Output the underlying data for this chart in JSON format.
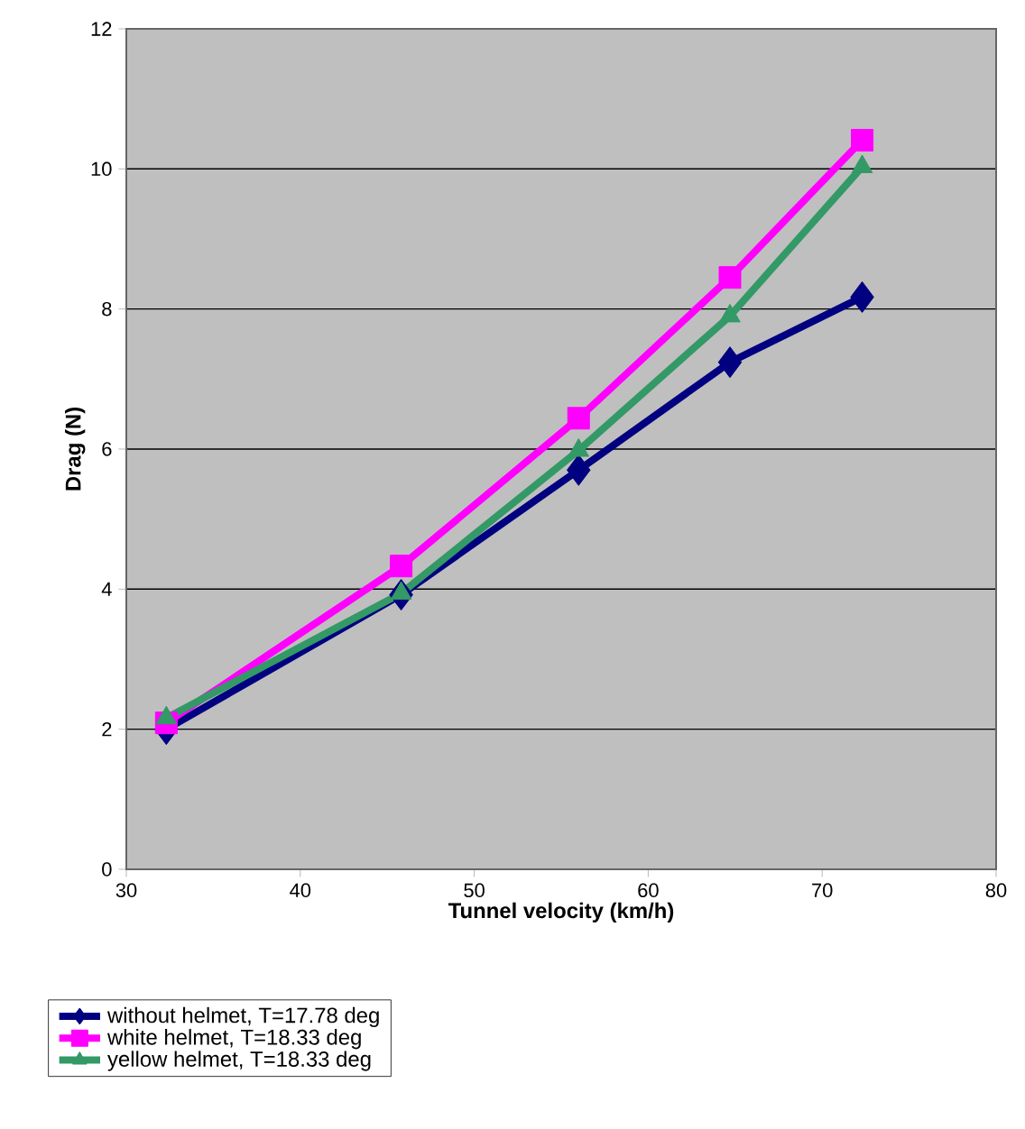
{
  "chart_data": {
    "type": "line",
    "xlabel": "Tunnel velocity (km/h)",
    "ylabel": "Drag (N)",
    "xlim": [
      30,
      80
    ],
    "xticks": [
      30,
      40,
      50,
      60,
      70,
      80
    ],
    "ylim": [
      0,
      12
    ],
    "yticks": [
      0,
      2,
      4,
      6,
      8,
      10,
      12
    ],
    "grid": "y",
    "legend": "bottom left",
    "line_style": "solid",
    "series": [
      {
        "name": "without helmet, T=17.78 deg",
        "color": "#000080",
        "marker": "diamond",
        "x": [
          32.3,
          45.8,
          56.0,
          64.7,
          72.3
        ],
        "values": [
          2.0,
          3.92,
          5.7,
          7.24,
          8.17
        ]
      },
      {
        "name": "white helmet, T=18.33 deg",
        "color": "#ff00ff",
        "marker": "square",
        "x": [
          32.3,
          45.8,
          56.0,
          64.7,
          72.3
        ],
        "values": [
          2.09,
          4.33,
          6.44,
          8.45,
          10.41
        ]
      },
      {
        "name": "yellow helmet, T=18.33 deg",
        "color": "#339966",
        "marker": "triangle",
        "x": [
          32.3,
          45.8,
          56.0,
          64.7,
          72.3
        ],
        "values": [
          2.16,
          3.94,
          5.98,
          7.9,
          10.03
        ]
      }
    ]
  }
}
